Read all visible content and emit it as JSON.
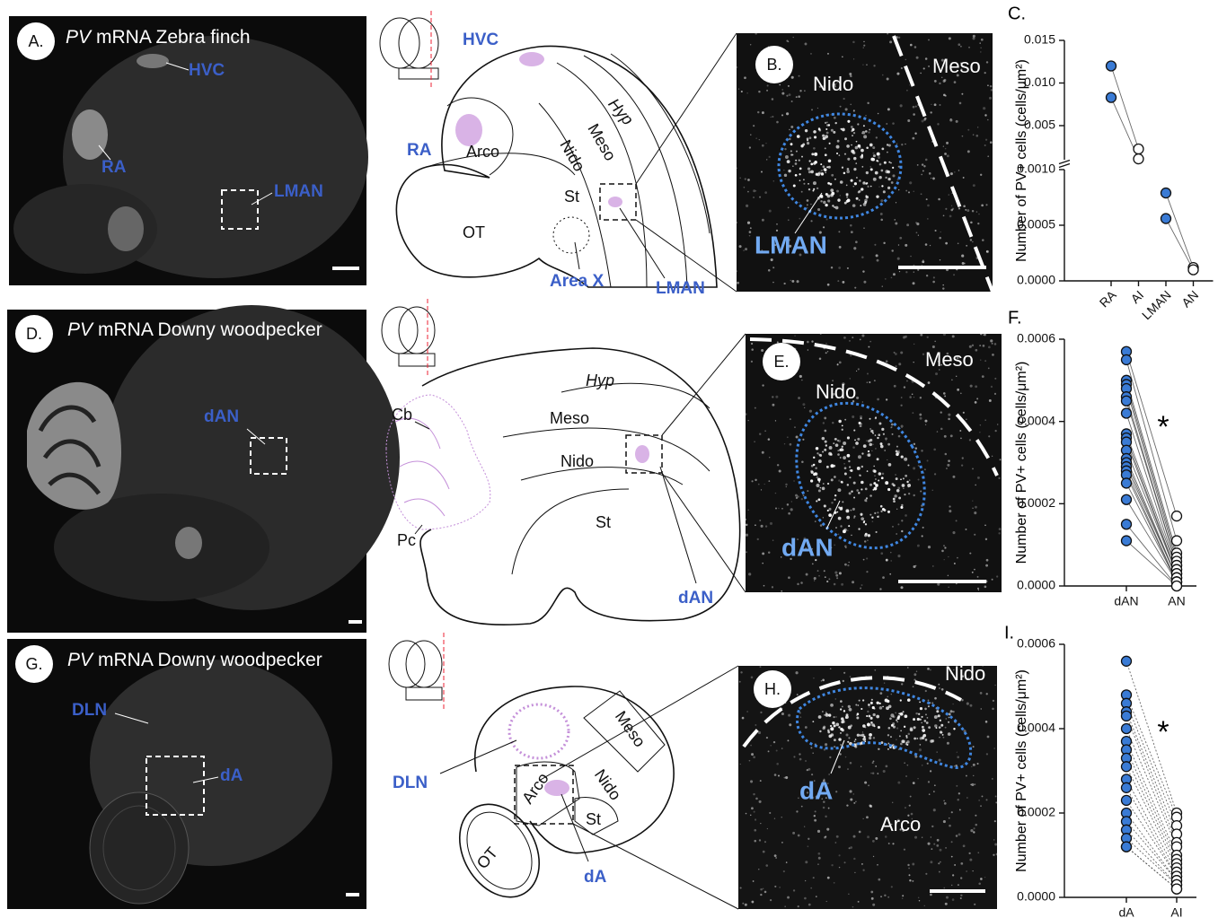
{
  "panels": {
    "A": {
      "letter": "A.",
      "gene": "PV",
      "title": "mRNA Zebra finch",
      "regions": [
        "HVC",
        "RA",
        "LMAN"
      ]
    },
    "schematic_1": {
      "regions": [
        "HVC",
        "RA",
        "Arco",
        "Hyp",
        "Meso",
        "Nido",
        "St",
        "OT",
        "Area X",
        "LMAN"
      ]
    },
    "B": {
      "letter": "B.",
      "regions": [
        "Nido",
        "Meso",
        "LMAN"
      ]
    },
    "D": {
      "letter": "D.",
      "gene": "PV",
      "title": "mRNA Downy woodpecker",
      "regions": [
        "dAN"
      ]
    },
    "schematic_2": {
      "regions": [
        "Cb",
        "Pc",
        "Hyp",
        "Meso",
        "Nido",
        "St",
        "dAN"
      ]
    },
    "E": {
      "letter": "E.",
      "regions": [
        "Meso",
        "Nido",
        "dAN"
      ]
    },
    "G": {
      "letter": "G.",
      "gene": "PV",
      "title": "mRNA Downy woodpecker",
      "regions": [
        "DLN",
        "dA"
      ]
    },
    "schematic_3": {
      "regions": [
        "Meso",
        "Nido",
        "Arco",
        "St",
        "OT",
        "DLN",
        "dA"
      ]
    },
    "H": {
      "letter": "H.",
      "regions": [
        "Nido",
        "dA",
        "Arco"
      ]
    }
  },
  "chart_data": [
    {
      "type": "paired_dot",
      "panel_label": "C.",
      "y_label": "Number of PV+ cells (cells/μm²)",
      "categories": [
        "RA",
        "AI",
        "LMAN",
        "AN"
      ],
      "values": [
        [
          0.012,
          0.0083
        ],
        [
          0.00226,
          0.0011
        ],
        [
          0.00079,
          0.00056
        ],
        [
          0.00012,
          0.0001
        ]
      ],
      "category_fill": [
        "#3a7bd5",
        "#ffffff",
        "#3a7bd5",
        "#ffffff"
      ],
      "segments": [
        {
          "ylim": [
            0,
            0.001
          ],
          "yticks": [
            {
              "value": 0,
              "label": "0.0000"
            },
            0.0005,
            {
              "value": 0.001,
              "label": "0.0010"
            }
          ]
        },
        {
          "ylim": [
            0.001,
            0.015
          ],
          "yticks": [
            0.005,
            {
              "value": 0.01,
              "label": "0.010"
            },
            0.015
          ]
        }
      ]
    },
    {
      "type": "paired_dot",
      "panel_label": "F.",
      "y_label": "Number of PV+ cells (cells/μm²)",
      "categories": [
        "dAN",
        "AN"
      ],
      "values": [
        [
          0.00057,
          0.00055,
          0.0005,
          0.00049,
          0.00048,
          0.00046,
          0.00045,
          0.00042,
          0.00037,
          0.00036,
          0.00035,
          0.00033,
          0.00031,
          0.0003,
          0.00029,
          0.00028,
          0.00027,
          0.00025,
          0.00021,
          0.00015,
          0.00011
        ],
        [
          0.00017,
          0.00011,
          8e-05,
          7e-05,
          6e-05,
          5e-05,
          5e-05,
          4e-05,
          4e-05,
          3e-05,
          3e-05,
          3e-05,
          2e-05,
          2e-05,
          2e-05,
          1e-05,
          1e-05,
          1e-05,
          1e-05,
          0,
          0
        ]
      ],
      "category_fill": [
        "#3a7bd5",
        "#ffffff"
      ],
      "ylim": [
        0,
        0.0006
      ],
      "yticks": [
        {
          "value": 0,
          "label": "0.0000"
        },
        {
          "value": 0.0002,
          "label": "0.0002"
        },
        {
          "value": 0.0004,
          "label": "0.0004"
        },
        {
          "value": 0.0006,
          "label": "0.0006"
        }
      ],
      "annotation": "*"
    },
    {
      "type": "paired_dot",
      "panel_label": "I.",
      "y_label": "Number of PV+ cells (cells/μm²)",
      "categories": [
        "dA",
        "AI"
      ],
      "values": [
        [
          0.00056,
          0.00048,
          0.00046,
          0.00044,
          0.00043,
          0.0004,
          0.00037,
          0.00035,
          0.00033,
          0.00031,
          0.00028,
          0.00026,
          0.00023,
          0.0002,
          0.00018,
          0.00016,
          0.00014,
          0.00012,
          0.00012
        ],
        [
          0.0002,
          0.00019,
          0.00017,
          0.00015,
          0.00013,
          0.00012,
          0.0001,
          9e-05,
          8e-05,
          7e-05,
          6e-05,
          5e-05,
          5e-05,
          4e-05,
          4e-05,
          3e-05,
          3e-05,
          2e-05,
          2e-05
        ]
      ],
      "category_fill": [
        "#3a7bd5",
        "#ffffff"
      ],
      "ylim": [
        0,
        0.0006
      ],
      "yticks": [
        {
          "value": 0,
          "label": "0.0000"
        },
        {
          "value": 0.0002,
          "label": "0.0002"
        },
        {
          "value": 0.0004,
          "label": "0.0004"
        },
        {
          "value": 0.0006,
          "label": "0.0006"
        }
      ],
      "annotation": "*"
    }
  ]
}
